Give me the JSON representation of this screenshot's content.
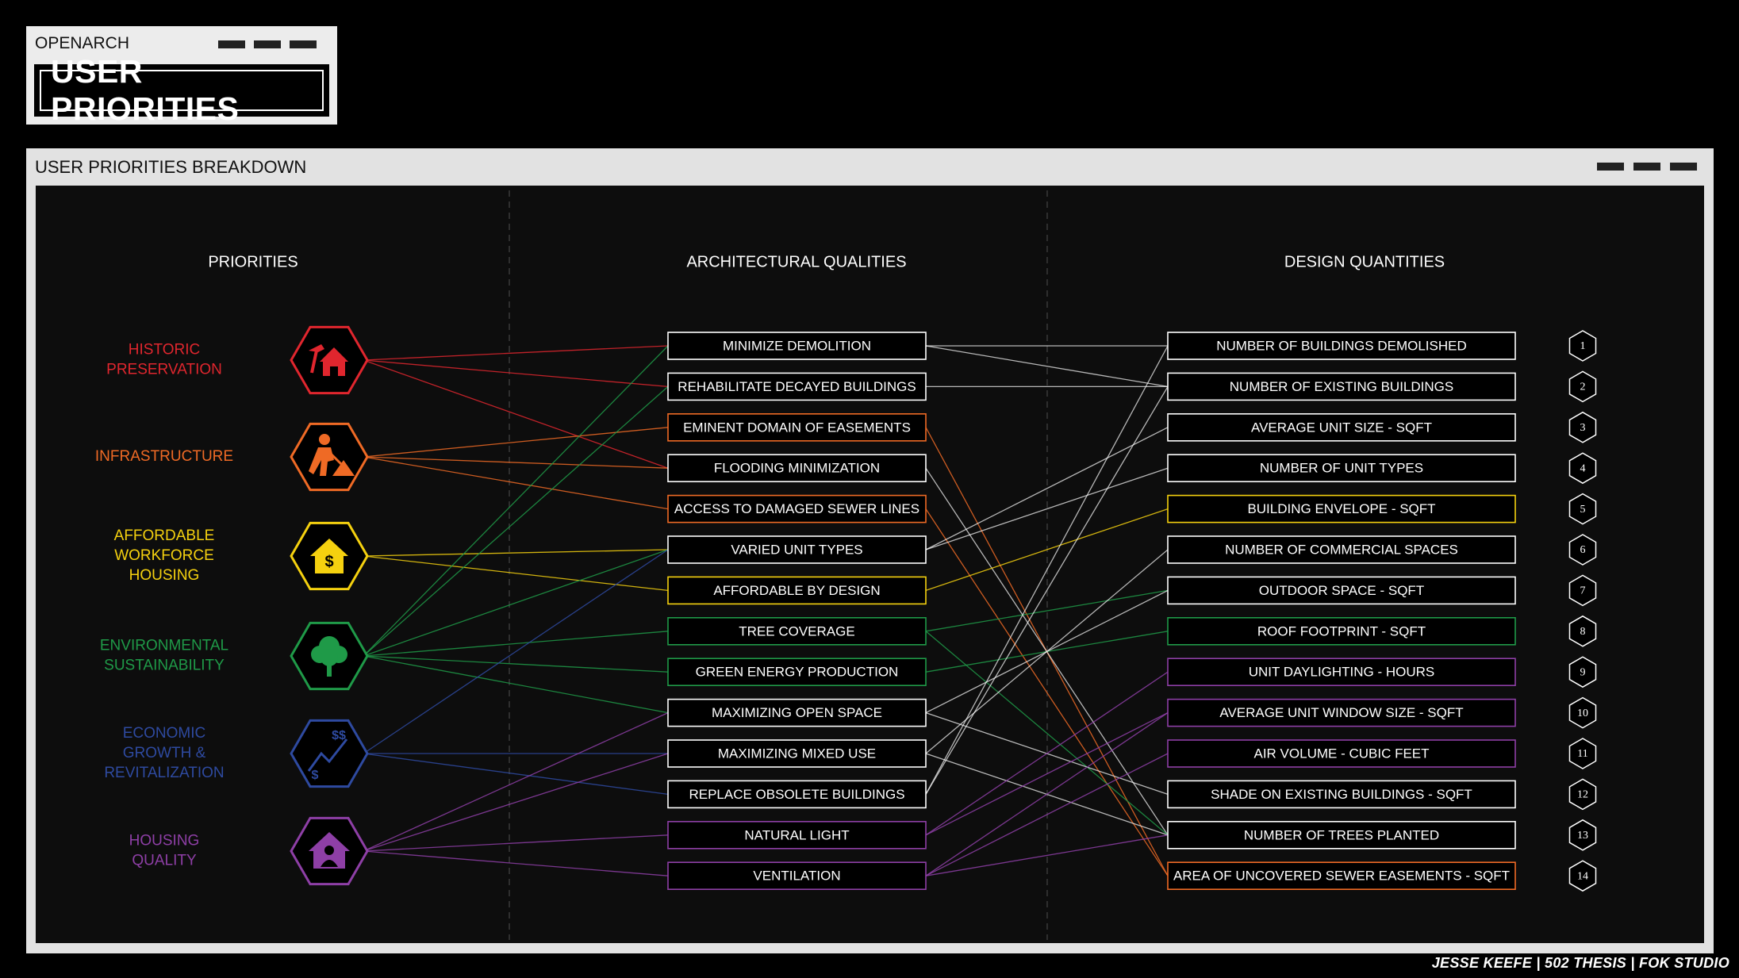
{
  "header": {
    "brand": "OPENARCH",
    "title": "USER PRIORITIES"
  },
  "window": {
    "title": "USER PRIORITIES BREAKDOWN"
  },
  "columns": {
    "priorities": "PRIORITIES",
    "qualities": "ARCHITECTURAL QUALITIES",
    "quantities": "DESIGN QUANTITIES"
  },
  "priorities": [
    {
      "lines": [
        "HISTORIC",
        "PRESERVATION"
      ],
      "color": "#e0262e",
      "icon": "house-hammer-icon"
    },
    {
      "lines": [
        "INFRASTRUCTURE"
      ],
      "color": "#ef6a25",
      "icon": "construction-worker-icon"
    },
    {
      "lines": [
        "AFFORDABLE",
        "WORKFORCE",
        "HOUSING"
      ],
      "color": "#f5d10f",
      "icon": "house-dollar-icon"
    },
    {
      "lines": [
        "ENVIRONMENTAL",
        "SUSTAINABILITY"
      ],
      "color": "#1f9a48",
      "icon": "tree-icon"
    },
    {
      "lines": [
        "ECONOMIC",
        "GROWTH &",
        "REVITALIZATION"
      ],
      "color": "#2e4aa0",
      "icon": "growth-chart-icon"
    },
    {
      "lines": [
        "HOUSING",
        "QUALITY"
      ],
      "color": "#8e3fa6",
      "icon": "house-person-icon"
    }
  ],
  "qualities": [
    {
      "label": "MINIMIZE DEMOLITION",
      "color": "#ffffff"
    },
    {
      "label": "REHABILITATE DECAYED BUILDINGS",
      "color": "#ffffff"
    },
    {
      "label": "EMINENT DOMAIN OF EASEMENTS",
      "color": "#ef6a25"
    },
    {
      "label": "FLOODING MINIMIZATION",
      "color": "#ffffff"
    },
    {
      "label": "ACCESS TO DAMAGED SEWER LINES",
      "color": "#ef6a25"
    },
    {
      "label": "VARIED UNIT TYPES",
      "color": "#ffffff"
    },
    {
      "label": "AFFORDABLE  BY DESIGN",
      "color": "#f5d10f"
    },
    {
      "label": "TREE COVERAGE",
      "color": "#1f9a48"
    },
    {
      "label": "GREEN ENERGY PRODUCTION",
      "color": "#1f9a48"
    },
    {
      "label": "MAXIMIZING OPEN SPACE",
      "color": "#ffffff"
    },
    {
      "label": "MAXIMIZING MIXED USE",
      "color": "#ffffff"
    },
    {
      "label": "REPLACE OBSOLETE BUILDINGS",
      "color": "#ffffff"
    },
    {
      "label": "NATURAL LIGHT",
      "color": "#8e3fa6"
    },
    {
      "label": "VENTILATION",
      "color": "#8e3fa6"
    }
  ],
  "quantities": [
    {
      "label": "NUMBER OF BUILDINGS DEMOLISHED",
      "color": "#ffffff",
      "num": "1"
    },
    {
      "label": "NUMBER OF EXISTING BUILDINGS",
      "color": "#ffffff",
      "num": "2"
    },
    {
      "label": "AVERAGE UNIT SIZE - SQFT",
      "color": "#ffffff",
      "num": "3"
    },
    {
      "label": "NUMBER OF UNIT TYPES",
      "color": "#ffffff",
      "num": "4"
    },
    {
      "label": "BUILDING ENVELOPE - SQFT",
      "color": "#f5d10f",
      "num": "5"
    },
    {
      "label": "NUMBER OF COMMERCIAL SPACES",
      "color": "#ffffff",
      "num": "6"
    },
    {
      "label": "OUTDOOR SPACE - SQFT",
      "color": "#ffffff",
      "num": "7"
    },
    {
      "label": "ROOF FOOTPRINT - SQFT",
      "color": "#1f9a48",
      "num": "8"
    },
    {
      "label": "UNIT DAYLIGHTING - HOURS",
      "color": "#8e3fa6",
      "num": "9"
    },
    {
      "label": "AVERAGE UNIT WINDOW SIZE - SQFT",
      "color": "#8e3fa6",
      "num": "10"
    },
    {
      "label": "AIR VOLUME - CUBIC FEET",
      "color": "#8e3fa6",
      "num": "11"
    },
    {
      "label": "SHADE ON EXISTING BUILDINGS - SQFT",
      "color": "#ffffff",
      "num": "12"
    },
    {
      "label": "NUMBER OF TREES PLANTED",
      "color": "#ffffff",
      "num": "13"
    },
    {
      "label": "AREA OF UNCOVERED SEWER EASEMENTS - SQFT",
      "color": "#ef6a25",
      "num": "14"
    }
  ],
  "links_priority_quality": [
    [
      0,
      0
    ],
    [
      0,
      1
    ],
    [
      0,
      3
    ],
    [
      1,
      2
    ],
    [
      1,
      3
    ],
    [
      1,
      4
    ],
    [
      2,
      5
    ],
    [
      2,
      6
    ],
    [
      3,
      0
    ],
    [
      3,
      1
    ],
    [
      3,
      5
    ],
    [
      3,
      7
    ],
    [
      3,
      8
    ],
    [
      3,
      9
    ],
    [
      4,
      5
    ],
    [
      4,
      10
    ],
    [
      4,
      11
    ],
    [
      5,
      9
    ],
    [
      5,
      10
    ],
    [
      5,
      12
    ],
    [
      5,
      13
    ]
  ],
  "links_quality_quantity": [
    [
      0,
      0
    ],
    [
      0,
      1
    ],
    [
      1,
      1
    ],
    [
      2,
      13
    ],
    [
      3,
      12
    ],
    [
      4,
      13
    ],
    [
      5,
      2
    ],
    [
      5,
      3
    ],
    [
      6,
      4
    ],
    [
      7,
      6
    ],
    [
      7,
      12
    ],
    [
      8,
      7
    ],
    [
      9,
      6
    ],
    [
      9,
      11
    ],
    [
      10,
      5
    ],
    [
      10,
      12
    ],
    [
      11,
      0
    ],
    [
      11,
      1
    ],
    [
      12,
      8
    ],
    [
      12,
      9
    ],
    [
      13,
      9
    ],
    [
      13,
      10
    ],
    [
      13,
      12
    ]
  ],
  "footer": "JESSE KEEFE | 502 THESIS | FOK STUDIO"
}
